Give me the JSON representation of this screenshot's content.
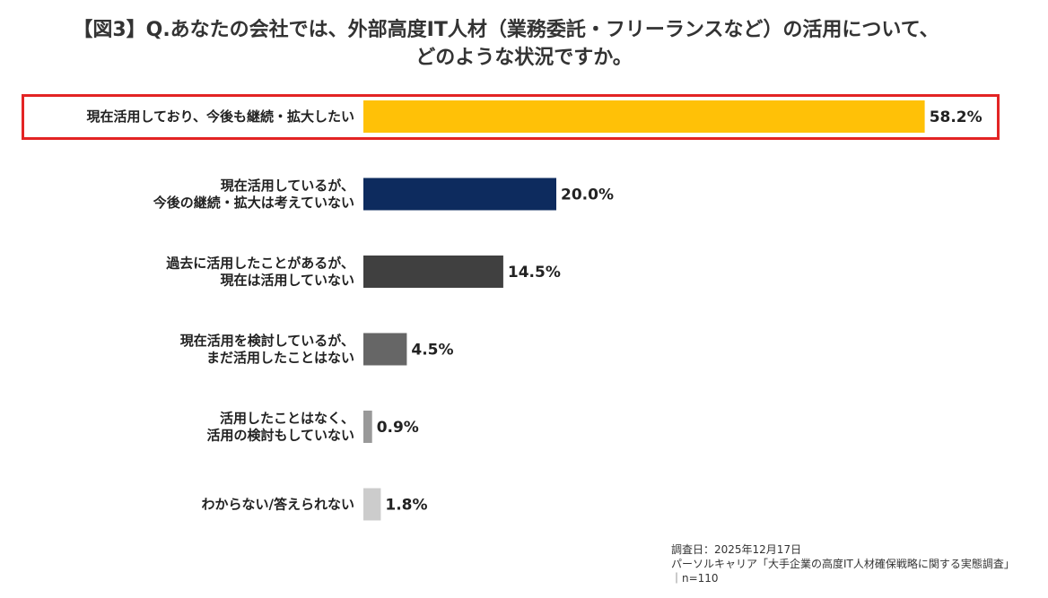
{
  "title": {
    "line1": "【図3】Q.あなたの会社では、外部高度IT人材（業務委託・フリーランスなど）の活用について、",
    "line2": "どのような状況ですか。"
  },
  "chart_data": {
    "type": "bar",
    "orientation": "horizontal",
    "title": "【図3】Q.あなたの会社では、外部高度IT人材（業務委託・フリーランスなど）の活用について、どのような状況ですか。",
    "unit": "%",
    "xlim": [
      0,
      100
    ],
    "categories": [
      [
        "現在活用しており、今後も継続・拡大したい"
      ],
      [
        "現在活用しているが、",
        "今後の継続・拡大は考えていない"
      ],
      [
        "過去に活用したことがあるが、",
        "現在は活用していない"
      ],
      [
        "現在活用を検討しているが、",
        "まだ活用したことはない"
      ],
      [
        "活用したことはなく、",
        "活用の検討もしていない"
      ],
      [
        "わからない/答えられない"
      ]
    ],
    "values": [
      58.2,
      20.0,
      14.5,
      4.5,
      0.9,
      1.8
    ],
    "value_labels": [
      "58.2%",
      "20.0%",
      "14.5%",
      "4.5%",
      "0.9%",
      "1.8%"
    ],
    "colors": [
      "#ffc107",
      "#0d2b5e",
      "#404040",
      "#666666",
      "#999999",
      "#cccccc"
    ],
    "highlighted_index": 0,
    "highlight_color": "#e32424"
  },
  "source": {
    "date": "調査日：2025年12月17日",
    "survey": "パーソルキャリア「大手企業の高度IT人材確保戦略に関する実態調査」",
    "n": "｜n=110"
  }
}
